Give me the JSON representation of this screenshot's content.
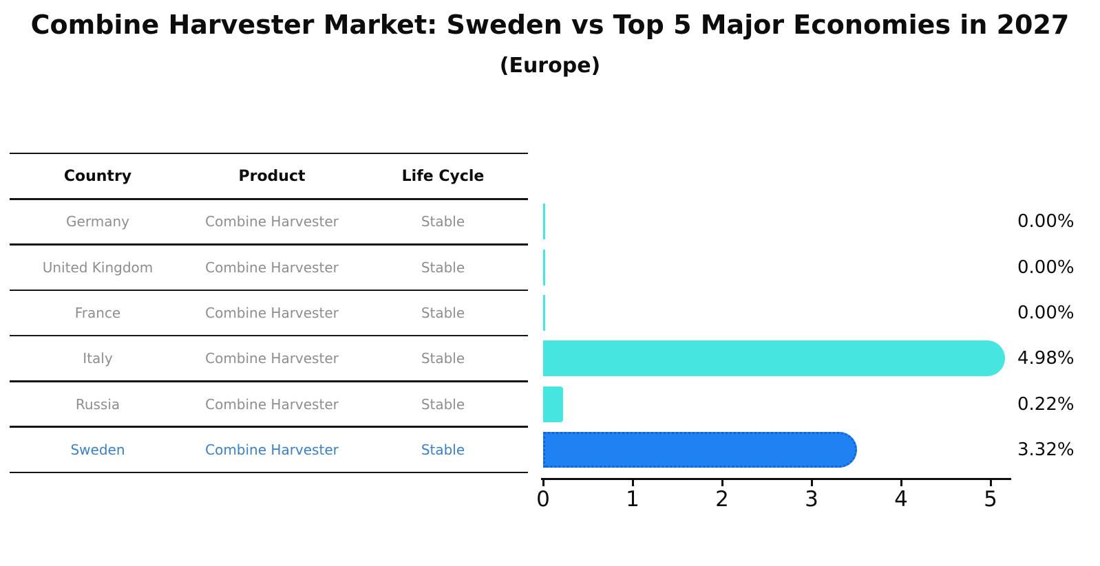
{
  "title": "Combine Harvester Market: Sweden vs Top 5 Major Economies in 2027",
  "subtitle": "(Europe)",
  "table": {
    "headers": [
      "Country",
      "Product",
      "Life Cycle"
    ],
    "rows": [
      {
        "country": "Germany",
        "product": "Combine Harvester",
        "life_cycle": "Stable",
        "highlighted": false
      },
      {
        "country": "United Kingdom",
        "product": "Combine Harvester",
        "life_cycle": "Stable",
        "highlighted": false
      },
      {
        "country": "France",
        "product": "Combine Harvester",
        "life_cycle": "Stable",
        "highlighted": false
      },
      {
        "country": "Italy",
        "product": "Combine Harvester",
        "life_cycle": "Stable",
        "highlighted": false
      },
      {
        "country": "Russia",
        "product": "Combine Harvester",
        "life_cycle": "Stable",
        "highlighted": false
      },
      {
        "country": "Sweden",
        "product": "Combine Harvester",
        "life_cycle": "Stable",
        "highlighted": true
      }
    ]
  },
  "chart_data": {
    "type": "bar",
    "orientation": "horizontal",
    "categories": [
      "Germany",
      "United Kingdom",
      "France",
      "Italy",
      "Russia",
      "Sweden"
    ],
    "values": [
      0.0,
      0.0,
      0.0,
      4.98,
      0.22,
      3.32
    ],
    "value_labels": [
      "0.00%",
      "0.00%",
      "0.00%",
      "4.98%",
      "0.22%",
      "3.32%"
    ],
    "highlight_index": 5,
    "x_ticks": [
      "0",
      "1",
      "2",
      "3",
      "4",
      "5"
    ],
    "xlim": [
      0,
      5.25
    ],
    "grid": false,
    "legend": "none",
    "colors": {
      "bar_default": "#46e5e0",
      "bar_highlight_fill": "#1e82f2",
      "bar_highlight_border": "#1563d2",
      "highlight_text": "#3d80c0",
      "row_text": "#8e8e8e",
      "axis": "#0d0d0d"
    }
  }
}
